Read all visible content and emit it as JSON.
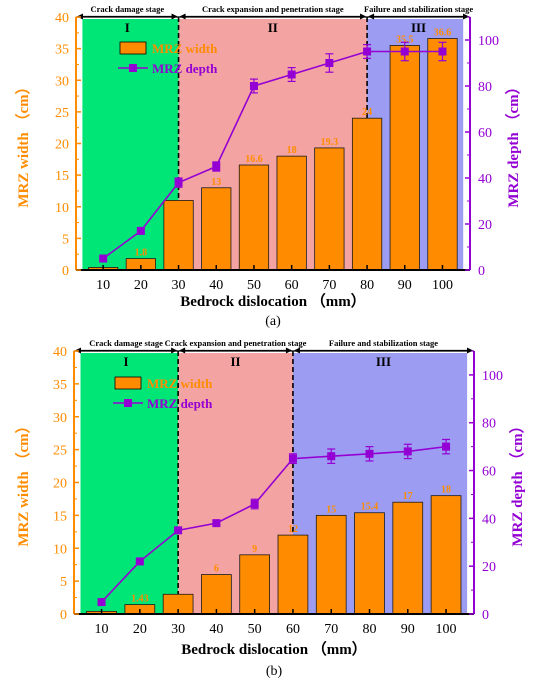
{
  "colors": {
    "bar": "#FF8C00",
    "bar_stroke": "#1a1a1a",
    "line": "#9400D3",
    "left_axis": "#FF8C00",
    "right_axis": "#9400D3",
    "stage1": "#00E676",
    "stage2": "#F4A3A3",
    "stage3": "#9C9CF2",
    "axis": "#000000"
  },
  "chart_data": [
    {
      "type": "bar+line",
      "panel_label": "(a)",
      "xlabel": "Bedrock dislocation （mm）",
      "ylabel_left": "MRZ width （cm）",
      "ylabel_right": "MRZ depth （cm）",
      "ylim_left": [
        0,
        40
      ],
      "ylim_right": [
        0,
        110
      ],
      "yticks_left": [
        0,
        5,
        10,
        15,
        20,
        25,
        30,
        35,
        40
      ],
      "yticks_right": [
        0,
        20,
        40,
        60,
        80,
        100
      ],
      "categories": [
        "10",
        "20",
        "30",
        "40",
        "50",
        "60",
        "70",
        "80",
        "90",
        "100"
      ],
      "legend": {
        "width_label": "MRZ width",
        "depth_label": "MRZ depth",
        "position": "top-left"
      },
      "stages": [
        {
          "roman": "I",
          "name": "Crack damage stage",
          "from": 0,
          "to": 2,
          "color_key": "stage1"
        },
        {
          "roman": "II",
          "name": "Crack expansion and penetration stage",
          "from": 2,
          "to": 7,
          "color_key": "stage2"
        },
        {
          "roman": "III",
          "name": "Failure and stabilization stage",
          "from": 7,
          "to": 9,
          "color_key": "stage3"
        }
      ],
      "stage_boundaries": [
        2,
        7
      ],
      "series": [
        {
          "name": "MRZ width",
          "axis": "left",
          "kind": "bar",
          "values": [
            0.4,
            1.8,
            11,
            13,
            16.6,
            18,
            19.3,
            24,
            35.5,
            36.6
          ]
        },
        {
          "name": "MRZ depth",
          "axis": "right",
          "kind": "line",
          "values": [
            5,
            17,
            38,
            45,
            80,
            85,
            90,
            95,
            95,
            95
          ],
          "errors": [
            0,
            0,
            2,
            2,
            3,
            3,
            4,
            3,
            4,
            4
          ]
        }
      ],
      "bar_labels": [
        "",
        "1.8",
        "",
        "13",
        "16.6",
        "18",
        "19.3",
        "24",
        "35.5",
        "36.6"
      ]
    },
    {
      "type": "bar+line",
      "panel_label": "(b)",
      "xlabel": "Bedrock dislocation （mm）",
      "ylabel_left": "MRZ width （cm）",
      "ylabel_right": "MRZ depth （cm）",
      "ylim_left": [
        0,
        40
      ],
      "ylim_right": [
        0,
        110
      ],
      "yticks_left": [
        0,
        5,
        10,
        15,
        20,
        25,
        30,
        35,
        40
      ],
      "yticks_right": [
        0,
        20,
        40,
        60,
        80,
        100
      ],
      "categories": [
        "10",
        "20",
        "30",
        "40",
        "50",
        "60",
        "70",
        "80",
        "90",
        "100"
      ],
      "legend": {
        "width_label": "MRZ width",
        "depth_label": "MRZ depth",
        "position": "top-left"
      },
      "stages": [
        {
          "roman": "I",
          "name": "Crack damage stage",
          "from": 0,
          "to": 2,
          "color_key": "stage1"
        },
        {
          "roman": "II",
          "name": "Crack expansion and penetration stage",
          "from": 2,
          "to": 5,
          "color_key": "stage2"
        },
        {
          "roman": "III",
          "name": "Failure and stabilization stage",
          "from": 5,
          "to": 9,
          "color_key": "stage3"
        }
      ],
      "stage_boundaries": [
        2,
        5
      ],
      "series": [
        {
          "name": "MRZ width",
          "axis": "left",
          "kind": "bar",
          "values": [
            0.4,
            1.43,
            3,
            6,
            9,
            12,
            15,
            15.4,
            17,
            18
          ]
        },
        {
          "name": "MRZ depth",
          "axis": "right",
          "kind": "line",
          "values": [
            5,
            22,
            35,
            38,
            46,
            65,
            66,
            67,
            68,
            70
          ],
          "errors": [
            0,
            0,
            0,
            1,
            2,
            2,
            3,
            3,
            3,
            3
          ]
        }
      ],
      "bar_labels": [
        "",
        "1.43",
        "",
        "6",
        "9",
        "12",
        "15",
        "15.4",
        "17",
        "18"
      ]
    }
  ]
}
